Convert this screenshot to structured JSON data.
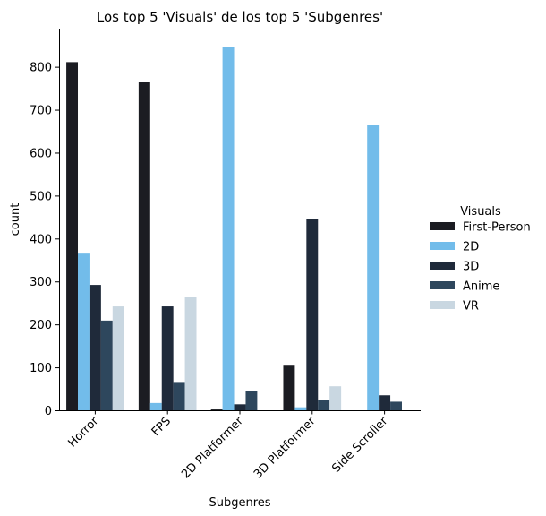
{
  "chart_data": {
    "type": "bar",
    "title": "Los top 5 'Visuals' de los top 5 'Subgenres'",
    "xlabel": "Subgenres",
    "ylabel": "count",
    "categories": [
      "Horror",
      "FPS",
      "2D Platformer",
      "3D Platformer",
      "Side Scroller"
    ],
    "ylim": [
      0,
      890
    ],
    "yticks": [
      0,
      100,
      200,
      300,
      400,
      500,
      600,
      700,
      800
    ],
    "legend_title": "Visuals",
    "legend_position": "right",
    "grid": false,
    "series": [
      {
        "name": "First-Person",
        "color": "#1b1c22",
        "values": [
          812,
          765,
          3,
          107,
          0
        ]
      },
      {
        "name": "2D",
        "color": "#72bcea",
        "values": [
          368,
          18,
          848,
          8,
          666
        ]
      },
      {
        "name": "3D",
        "color": "#1f2a3a",
        "values": [
          293,
          243,
          15,
          447,
          36
        ]
      },
      {
        "name": "Anime",
        "color": "#2e475d",
        "values": [
          210,
          67,
          46,
          24,
          21
        ]
      },
      {
        "name": "VR",
        "color": "#c9d7e1",
        "values": [
          243,
          264,
          0,
          57,
          0
        ]
      }
    ]
  }
}
